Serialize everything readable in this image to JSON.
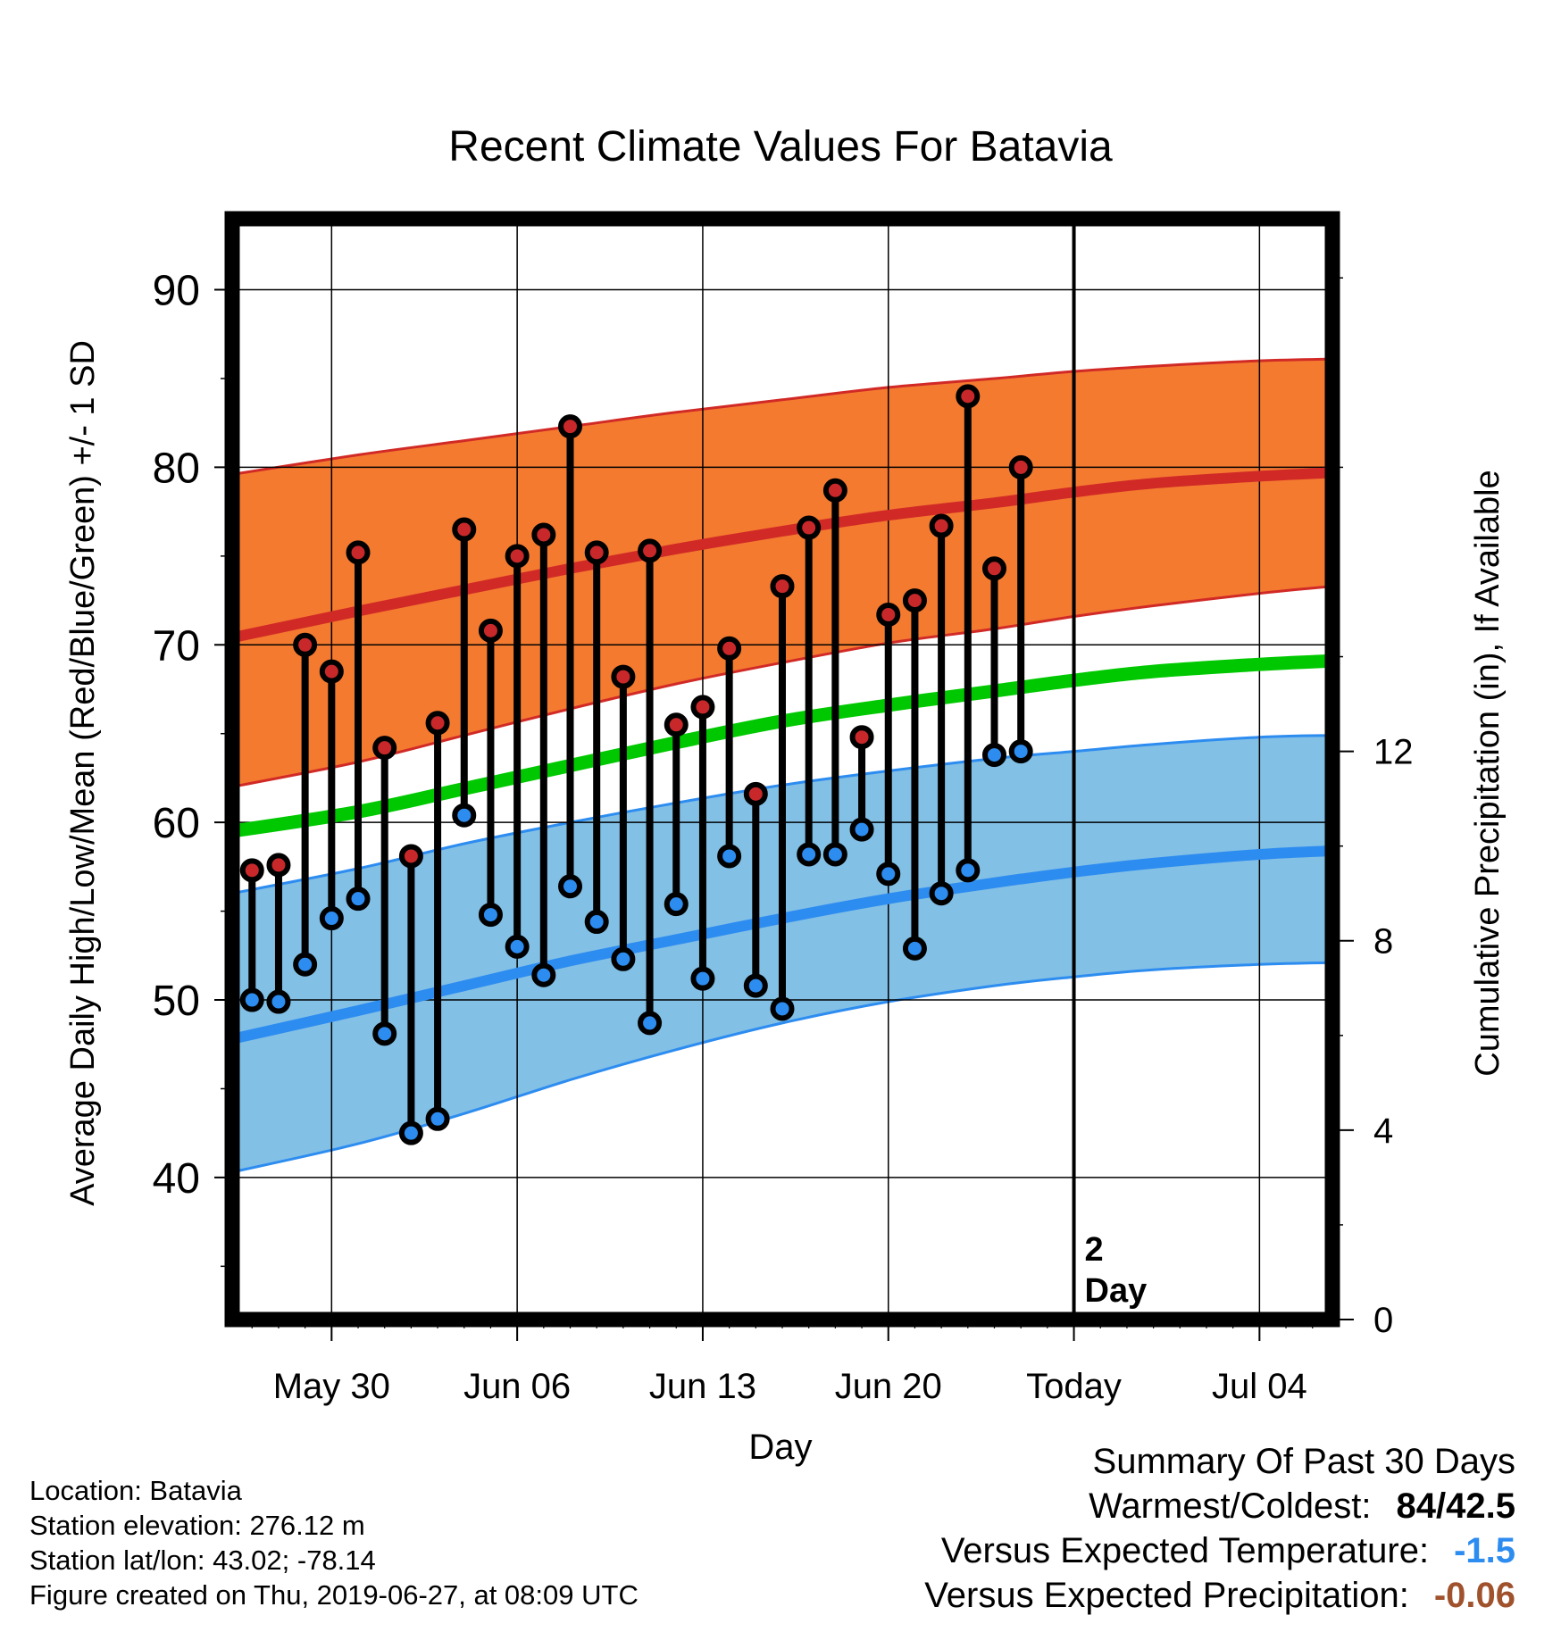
{
  "chart_data": {
    "type": "line",
    "title": "Recent Climate Values For Batavia",
    "xlabel": "Day",
    "ylabel": "Average Daily High/Low/Mean (Red/Blue/Green) +/- 1 SD",
    "y2label": "Cumulative Precipitation (in), If Available",
    "x_start_day": "May 27",
    "x_range_days": [
      -0.75,
      40.75
    ],
    "ylim": [
      32,
      94
    ],
    "y2lim": [
      0,
      23.25
    ],
    "yticks": [
      "40",
      "50",
      "60",
      "70",
      "80",
      "90"
    ],
    "y2ticks": [
      "0",
      "4",
      "8",
      "12"
    ],
    "xticks": [
      {
        "day": 3,
        "label": "May 30"
      },
      {
        "day": 10,
        "label": "Jun 06"
      },
      {
        "day": 17,
        "label": "Jun 13"
      },
      {
        "day": 24,
        "label": "Jun 20"
      },
      {
        "day": 31,
        "label": "Today"
      },
      {
        "day": 38,
        "label": "Jul 04"
      }
    ],
    "grid": true,
    "today_marker": {
      "day": 31,
      "label_line1": "2",
      "label_line2": "Day"
    },
    "normals": {
      "days": [
        -0.75,
        4,
        8,
        12,
        16,
        20,
        24,
        28,
        31,
        34,
        38,
        40.75
      ],
      "high_mean": [
        70.4,
        71.9,
        73.1,
        74.3,
        75.4,
        76.4,
        77.3,
        78.0,
        78.6,
        79.1,
        79.5,
        79.7
      ],
      "high_upper": [
        79.6,
        80.7,
        81.5,
        82.3,
        83.1,
        83.8,
        84.5,
        85.0,
        85.4,
        85.7,
        86.0,
        86.1
      ],
      "high_lower": [
        62.0,
        63.4,
        64.9,
        66.4,
        67.8,
        69.0,
        70.1,
        70.9,
        71.6,
        72.2,
        72.9,
        73.3
      ],
      "mean": [
        59.5,
        60.6,
        61.9,
        63.2,
        64.5,
        65.7,
        66.6,
        67.4,
        68.0,
        68.5,
        68.9,
        69.1
      ],
      "low_mean": [
        47.8,
        49.4,
        50.8,
        52.2,
        53.4,
        54.6,
        55.7,
        56.6,
        57.2,
        57.7,
        58.2,
        58.4
      ],
      "low_upper": [
        56.0,
        57.4,
        58.8,
        60.0,
        61.1,
        62.1,
        62.9,
        63.6,
        64.0,
        64.4,
        64.8,
        64.9
      ],
      "low_lower": [
        40.3,
        41.9,
        43.6,
        45.5,
        47.2,
        48.7,
        49.9,
        50.8,
        51.3,
        51.7,
        52.0,
        52.1
      ]
    },
    "observed": {
      "days": [
        0,
        1,
        2,
        3,
        4,
        5,
        6,
        7,
        8,
        9,
        10,
        11,
        12,
        13,
        14,
        15,
        16,
        17,
        18,
        19,
        20,
        21,
        22,
        23,
        24,
        25,
        26,
        27,
        28,
        29
      ],
      "high": [
        57.3,
        57.6,
        70.0,
        68.5,
        75.2,
        64.2,
        58.1,
        65.6,
        76.5,
        70.8,
        75.0,
        76.2,
        82.3,
        75.2,
        68.2,
        75.3,
        65.5,
        66.5,
        69.8,
        61.6,
        73.3,
        76.6,
        78.7,
        64.8,
        71.7,
        72.5,
        76.7,
        84.0,
        74.3,
        80.0
      ],
      "low": [
        50.0,
        49.9,
        52.0,
        54.6,
        55.7,
        48.1,
        42.5,
        43.3,
        60.4,
        54.8,
        53.0,
        51.4,
        56.4,
        54.4,
        52.3,
        48.7,
        55.4,
        51.2,
        58.1,
        50.8,
        49.5,
        58.2,
        58.2,
        59.6,
        57.1,
        52.9,
        56.0,
        57.3,
        63.8,
        64.0
      ]
    },
    "colors": {
      "high_band": "#F47A30",
      "high_line": "#D12A26",
      "high_edge": "#D12A26",
      "low_band": "#82C0E6",
      "low_line": "#2D8CF0",
      "low_edge": "#2D8CF0",
      "mean_line": "#00C800",
      "high_marker": "#C8282A",
      "low_marker": "#2D8CF0"
    }
  },
  "info": {
    "location": "Location: Batavia",
    "elevation": "Station elevation: 276.12 m",
    "latlon": "Station lat/lon: 43.02; -78.14",
    "created": "Figure created on Thu, 2019-06-27, at 08:09 UTC"
  },
  "summary": {
    "heading": "Summary Of Past 30 Days",
    "warmest_label": "Warmest/Coldest:",
    "warmest_value": "84/42.5",
    "temp_label": "Versus Expected Temperature:",
    "temp_value": "-1.5",
    "temp_color": "#2D8CF0",
    "precip_label": "Versus Expected Precipitation:",
    "precip_value": "-0.06",
    "precip_color": "#A0522D"
  }
}
